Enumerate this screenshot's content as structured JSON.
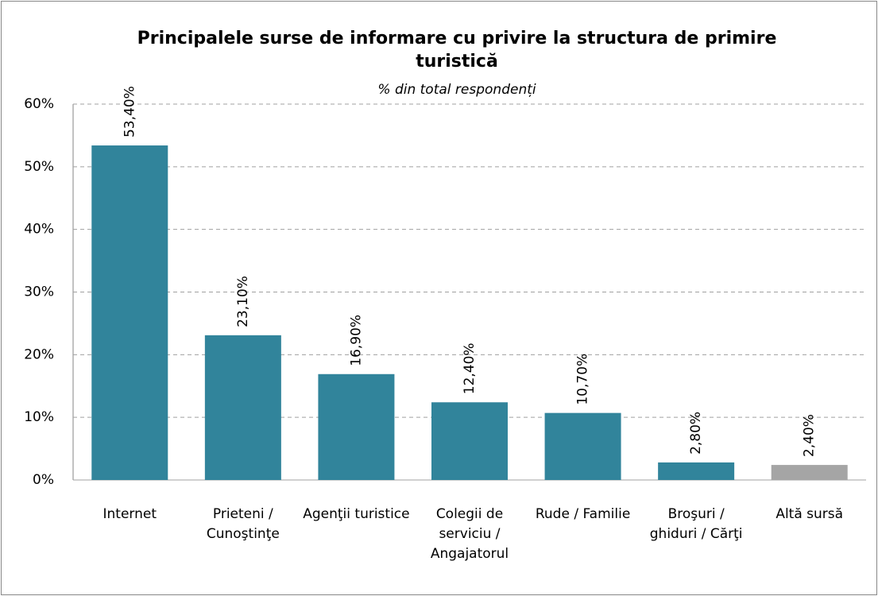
{
  "chart_data": {
    "type": "bar",
    "title": "Principalele surse de informare cu privire la structura de primire turistică",
    "subtitle": "% din total respondenți",
    "categories": [
      "Internet",
      "Prieteni / Cunoştinţe",
      "Agenţii turistice",
      "Colegii de serviciu / Angajatorul",
      "Rude / Familie",
      "Broşuri / ghiduri / Cărţi",
      "Altă sursă"
    ],
    "values": [
      53.4,
      23.1,
      16.9,
      12.4,
      10.7,
      2.8,
      2.4
    ],
    "value_labels": [
      "53,40%",
      "23,10%",
      "16,90%",
      "12,40%",
      "10,70%",
      "2,80%",
      "2,40%"
    ],
    "colors": [
      "#31849b",
      "#31849b",
      "#31849b",
      "#31849b",
      "#31849b",
      "#31849b",
      "#a5a5a5"
    ],
    "ylim": [
      0,
      60
    ],
    "yticks": [
      {
        "value": 0,
        "label": "0%"
      },
      {
        "value": 10,
        "label": "10%"
      },
      {
        "value": 20,
        "label": "20%"
      },
      {
        "value": 30,
        "label": "30%"
      },
      {
        "value": 40,
        "label": "40%"
      },
      {
        "value": 50,
        "label": "50%"
      },
      {
        "value": 60,
        "label": "60%"
      }
    ],
    "grid": true
  }
}
